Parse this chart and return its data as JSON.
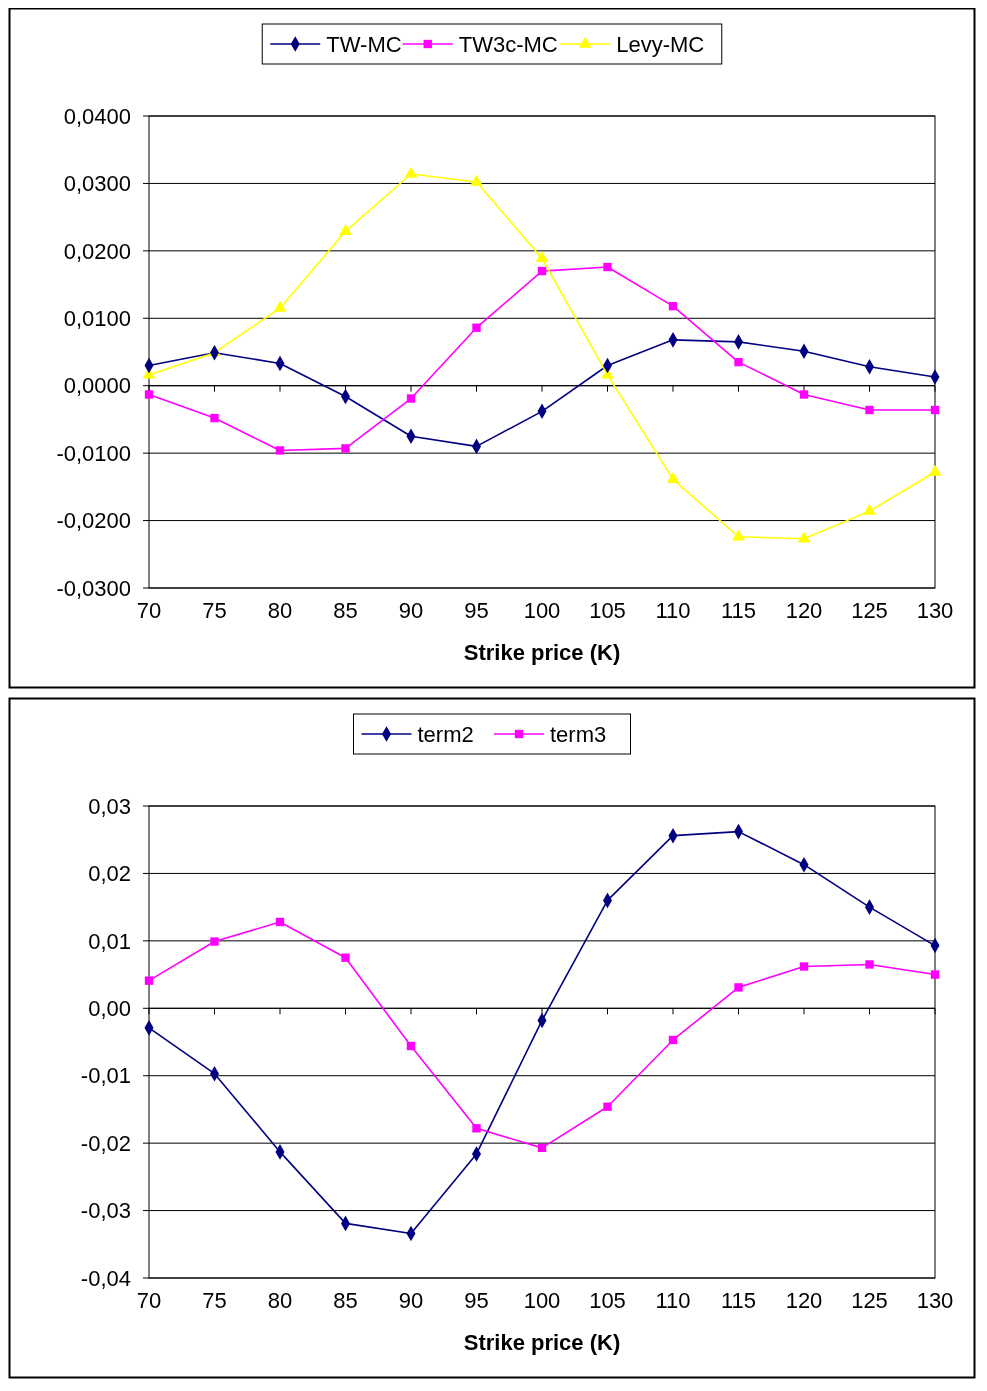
{
  "chart_data": [
    {
      "type": "line",
      "xlabel": "Strike price (K)",
      "categories": [
        "70",
        "75",
        "80",
        "85",
        "90",
        "95",
        "100",
        "105",
        "110",
        "115",
        "120",
        "125",
        "130"
      ],
      "series": [
        {
          "name": "TW-MC",
          "color": "#000080",
          "marker": "diamond",
          "values": [
            0.003,
            0.0049,
            0.0033,
            -0.0016,
            -0.0075,
            -0.009,
            -0.0038,
            0.003,
            0.0068,
            0.0065,
            0.0051,
            0.0028,
            0.0013
          ]
        },
        {
          "name": "TW3c-MC",
          "color": "#ff00ff",
          "marker": "square",
          "values": [
            -0.0013,
            -0.0048,
            -0.0096,
            -0.0093,
            -0.0019,
            0.0086,
            0.017,
            0.0176,
            0.0118,
            0.0035,
            -0.0013,
            -0.0036,
            -0.0036
          ]
        },
        {
          "name": "Levy-MC",
          "color": "#ffff00",
          "marker": "triangle",
          "values": [
            0.0016,
            0.0049,
            0.0115,
            0.0229,
            0.0314,
            0.0302,
            0.0189,
            0.0016,
            -0.0139,
            -0.0224,
            -0.0227,
            -0.0186,
            -0.0128
          ]
        }
      ],
      "ylim": [
        -0.03,
        0.04
      ],
      "yticks": [
        {
          "value": -0.03,
          "label": "-0,0300"
        },
        {
          "value": -0.02,
          "label": "-0,0200"
        },
        {
          "value": -0.01,
          "label": "-0,0100"
        },
        {
          "value": 0,
          "label": "0,0000"
        },
        {
          "value": 0.01,
          "label": "0,0100"
        },
        {
          "value": 0.02,
          "label": "0,0200"
        },
        {
          "value": 0.03,
          "label": "0,0300"
        },
        {
          "value": 0.04,
          "label": "0,0400"
        }
      ],
      "grid": "y",
      "legend": "top"
    },
    {
      "type": "line",
      "xlabel": "Strike price (K)",
      "categories": [
        "70",
        "75",
        "80",
        "85",
        "90",
        "95",
        "100",
        "105",
        "110",
        "115",
        "120",
        "125",
        "130"
      ],
      "series": [
        {
          "name": "term2",
          "color": "#000080",
          "marker": "diamond",
          "values": [
            -0.0029,
            -0.0097,
            -0.0213,
            -0.0319,
            -0.0334,
            -0.0216,
            -0.0018,
            0.016,
            0.0256,
            0.0262,
            0.0213,
            0.015,
            0.0093
          ]
        },
        {
          "name": "term3",
          "color": "#ff00ff",
          "marker": "square",
          "values": [
            0.0041,
            0.0099,
            0.0128,
            0.0075,
            -0.0056,
            -0.0178,
            -0.0207,
            -0.0146,
            -0.0047,
            0.0031,
            0.0062,
            0.0065,
            0.005
          ]
        }
      ],
      "ylim": [
        -0.04,
        0.03
      ],
      "yticks": [
        {
          "value": -0.04,
          "label": "-0,04"
        },
        {
          "value": -0.03,
          "label": "-0,03"
        },
        {
          "value": -0.02,
          "label": "-0,02"
        },
        {
          "value": -0.01,
          "label": "-0,01"
        },
        {
          "value": 0,
          "label": "0,00"
        },
        {
          "value": 0.01,
          "label": "0,01"
        },
        {
          "value": 0.02,
          "label": "0,02"
        },
        {
          "value": 0.03,
          "label": "0,03"
        }
      ],
      "grid": "y",
      "legend": "top"
    }
  ]
}
